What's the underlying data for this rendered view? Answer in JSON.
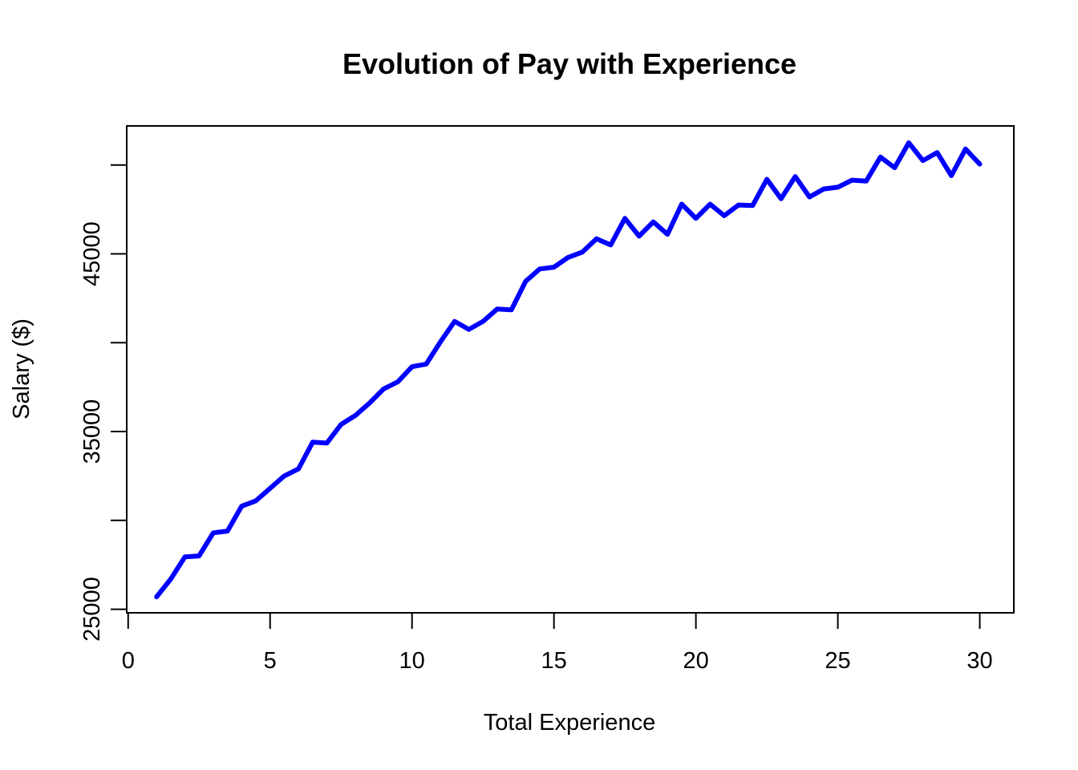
{
  "chart_data": {
    "type": "line",
    "title": "Evolution of Pay with Experience",
    "xlabel": "Total Experience",
    "ylabel": "Salary ($)",
    "xlim": [
      -0.05,
      31.2
    ],
    "ylim": [
      24800,
      52200
    ],
    "x_ticks": [
      0,
      5,
      10,
      15,
      20,
      25,
      30
    ],
    "x_tick_labels": [
      "0",
      "5",
      "10",
      "15",
      "20",
      "25",
      "30"
    ],
    "y_ticks": [
      25000,
      30000,
      35000,
      40000,
      45000,
      50000
    ],
    "y_tick_labels": [
      "25000",
      "",
      "35000",
      "",
      "45000",
      ""
    ],
    "grid": false,
    "line_color": "#0000ff",
    "series": [
      {
        "x": [
          1,
          1.5,
          2,
          2.5,
          3,
          3.5,
          4,
          4.5,
          5,
          5.5,
          6,
          6.5,
          7,
          7.5,
          8,
          8.5,
          9,
          9.5,
          10,
          10.5,
          11,
          11.5,
          12,
          12.5,
          13,
          13.5,
          14,
          14.5,
          15,
          15.5,
          16,
          16.5,
          17,
          17.5,
          18,
          18.5,
          19,
          19.5,
          20,
          20.5,
          21,
          21.5,
          22,
          22.5,
          23,
          23.5,
          24,
          24.5,
          25,
          25.5,
          26,
          26.5,
          27,
          27.5,
          28,
          28.5,
          29,
          29.5,
          30
        ],
        "values": [
          25700,
          26700,
          27950,
          28000,
          29300,
          29400,
          30800,
          31100,
          31800,
          32500,
          32900,
          34400,
          34350,
          35400,
          35900,
          36600,
          37400,
          37800,
          38650,
          38800,
          40050,
          41200,
          40750,
          41200,
          41900,
          41850,
          43450,
          44150,
          44250,
          44800,
          45100,
          45850,
          45500,
          47000,
          46000,
          46800,
          46100,
          47800,
          47000,
          47800,
          47150,
          47750,
          47720,
          49200,
          48100,
          49350,
          48200,
          48650,
          48750,
          49150,
          49100,
          50450,
          49850,
          51250,
          50250,
          50700,
          49400,
          50900,
          50050
        ]
      }
    ]
  }
}
